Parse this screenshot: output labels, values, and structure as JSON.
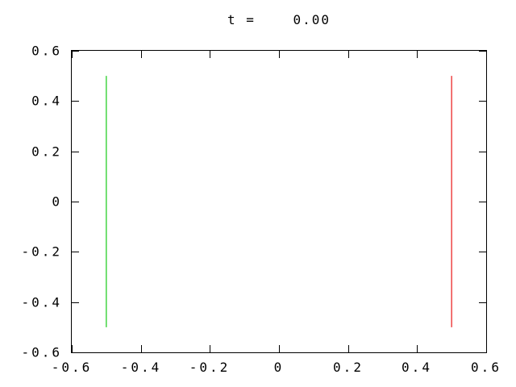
{
  "window": {
    "background": "#ffffff"
  },
  "chart_data": {
    "type": "line",
    "title": "t =    0.00",
    "subtitle": "",
    "xlabel": "",
    "ylabel": "",
    "xlim": [
      -0.6,
      0.6
    ],
    "ylim": [
      -0.6,
      0.6
    ],
    "xticks": [
      -0.6,
      -0.4,
      -0.2,
      0,
      0.2,
      0.4,
      0.6
    ],
    "xtick_labels": [
      "-0.6",
      "-0.4",
      "-0.2",
      "0",
      "0.2",
      "0.4",
      "0.6"
    ],
    "yticks": [
      -0.6,
      -0.4,
      -0.2,
      0,
      0.2,
      0.4,
      0.6
    ],
    "ytick_labels": [
      "-0.6",
      "-0.4",
      "-0.2",
      "0",
      "0.2",
      "0.4",
      "0.6"
    ],
    "grid": false,
    "legend": "none",
    "tick_style": "inward-mirrored",
    "frame_color": "#000000",
    "text_color": "#000000",
    "series": [
      {
        "name": "left-green-segment",
        "color": "#44d544",
        "x": [
          -0.5,
          -0.5
        ],
        "y": [
          -0.5,
          0.5
        ]
      },
      {
        "name": "right-red-segment",
        "color": "#ee4444",
        "x": [
          0.5,
          0.5
        ],
        "y": [
          -0.5,
          0.5
        ]
      }
    ]
  }
}
